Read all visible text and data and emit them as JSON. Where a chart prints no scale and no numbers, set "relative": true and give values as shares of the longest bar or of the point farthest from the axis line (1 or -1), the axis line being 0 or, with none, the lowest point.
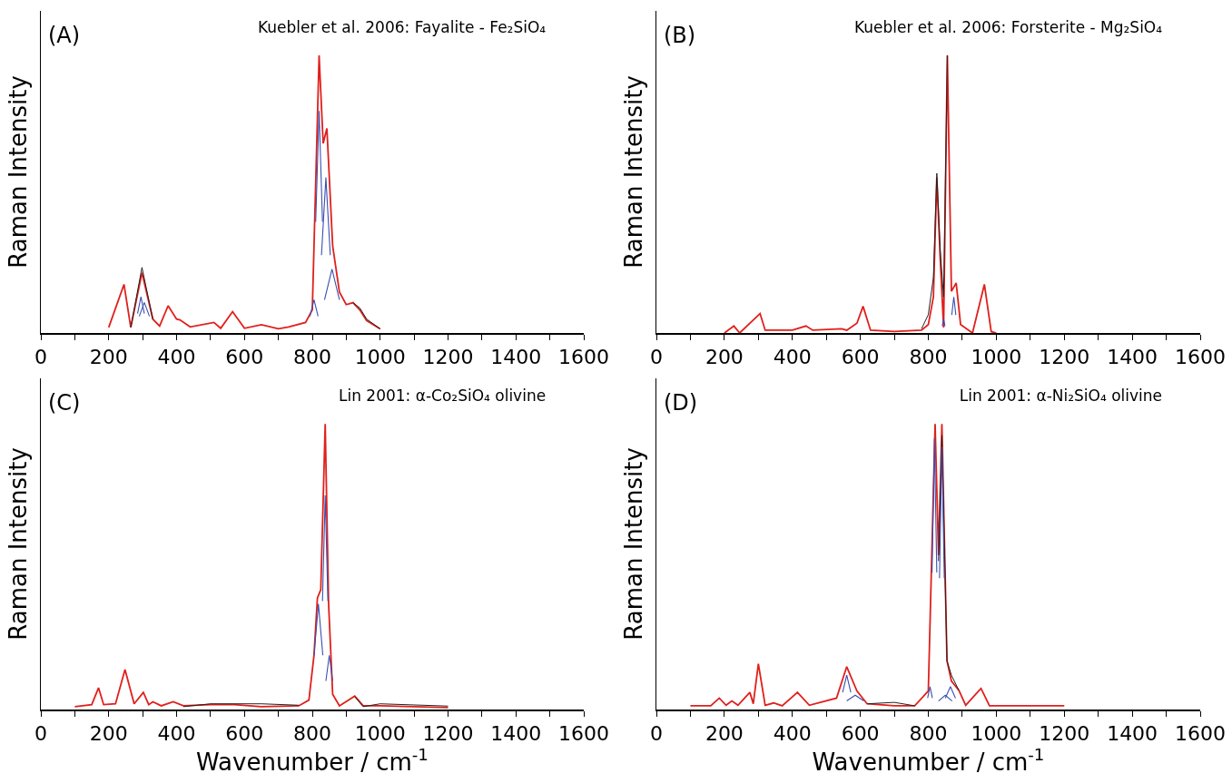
{
  "chart_data": [
    {
      "type": "line",
      "title": "Kuebler et al. 2006: Fayalite - Fe₂SiO₄",
      "ylabel": "Raman Intensity",
      "annotations": [
        "(A)"
      ],
      "relative": true,
      "xlim": [
        0,
        1600
      ],
      "xticks": [
        0,
        {
          "value": 100,
          "label": null
        },
        200,
        {
          "value": 300,
          "label": null
        },
        400,
        {
          "value": 500,
          "label": null
        },
        600,
        {
          "value": 700,
          "label": null
        },
        800,
        {
          "value": 900,
          "label": null
        },
        1000,
        {
          "value": 1100,
          "label": null
        },
        1200,
        {
          "value": 1300,
          "label": null
        },
        1400,
        {
          "value": 1500,
          "label": null
        },
        1600
      ],
      "x": [
        200,
        245,
        265,
        298,
        330,
        350,
        375,
        400,
        410,
        440,
        510,
        530,
        565,
        600,
        650,
        700,
        730,
        780,
        800,
        820,
        832,
        843,
        860,
        880,
        900,
        920,
        940,
        960,
        1000
      ],
      "series": [
        {
          "color": "#e0201c",
          "values": [
            0.02,
            0.175,
            0.02,
            0.217,
            0.05,
            0.025,
            0.098,
            0.05,
            0.047,
            0.022,
            0.038,
            0.017,
            0.077,
            0.017,
            0.03,
            0.015,
            0.022,
            0.038,
            0.083,
            1.0,
            0.683,
            0.737,
            0.313,
            0.147,
            0.102,
            0.109,
            0.083,
            0.045,
            0.015
          ]
        },
        {
          "color": "#222222",
          "values": [
            null,
            null,
            0.02,
            0.236,
            0.05,
            null,
            null,
            null,
            null,
            null,
            null,
            null,
            null,
            null,
            null,
            null,
            null,
            null,
            null,
            null,
            null,
            null,
            null,
            null,
            null,
            0.109,
            0.09,
            0.05,
            0.015
          ]
        },
        {
          "color": "#3a4fb0",
          "x": [
            285,
            295,
            305
          ],
          "values": [
            0.07,
            0.13,
            0.07
          ]
        },
        {
          "color": "#3a4fb0",
          "x": [
            290,
            305,
            320
          ],
          "values": [
            0.06,
            0.11,
            0.06
          ]
        },
        {
          "color": "#3a4fb0",
          "x": [
            793,
            805,
            817
          ],
          "values": [
            0.06,
            0.12,
            0.06
          ]
        },
        {
          "color": "#3a4fb0",
          "x": [
            810,
            820,
            830
          ],
          "values": [
            0.4,
            0.8,
            0.4
          ]
        },
        {
          "color": "#3a4fb0",
          "x": [
            827,
            840,
            853
          ],
          "values": [
            0.28,
            0.56,
            0.28
          ]
        },
        {
          "color": "#3a4fb0",
          "x": [
            836,
            858,
            880
          ],
          "values": [
            0.12,
            0.23,
            0.12
          ]
        }
      ]
    },
    {
      "type": "line",
      "title": "Kuebler et al. 2006: Forsterite - Mg₂SiO₄",
      "ylabel": "Raman Intensity",
      "annotations": [
        "(B)"
      ],
      "relative": true,
      "xlim": [
        0,
        1600
      ],
      "xticks": [
        0,
        {
          "value": 100,
          "label": null
        },
        200,
        {
          "value": 300,
          "label": null
        },
        400,
        {
          "value": 500,
          "label": null
        },
        600,
        {
          "value": 700,
          "label": null
        },
        800,
        {
          "value": 900,
          "label": null
        },
        1000,
        {
          "value": 1100,
          "label": null
        },
        1200,
        {
          "value": 1300,
          "label": null
        },
        1400,
        {
          "value": 1500,
          "label": null
        },
        1600
      ],
      "x": [
        200,
        228,
        245,
        305,
        320,
        340,
        400,
        440,
        460,
        545,
        560,
        590,
        608,
        630,
        700,
        780,
        800,
        815,
        825,
        835,
        845,
        856,
        868,
        882,
        895,
        930,
        965,
        985,
        1000
      ],
      "series": [
        {
          "color": "#e0201c",
          "values": [
            0.0,
            0.025,
            0.0,
            0.07,
            0.01,
            0.01,
            0.01,
            0.025,
            0.01,
            0.015,
            0.01,
            0.035,
            0.096,
            0.01,
            0.005,
            0.01,
            0.03,
            0.13,
            0.56,
            0.27,
            0.02,
            1.0,
            0.15,
            0.18,
            0.03,
            0.0,
            0.175,
            0.005,
            0.0
          ]
        },
        {
          "color": "#222222",
          "values": [
            null,
            null,
            null,
            null,
            null,
            null,
            null,
            null,
            null,
            null,
            null,
            null,
            null,
            null,
            null,
            0.015,
            0.066,
            0.2,
            0.575,
            0.3,
            0.13,
            1.0,
            null,
            null,
            null,
            null,
            null,
            null,
            null
          ]
        },
        {
          "color": "#3a4fb0",
          "x": [
            841,
            845,
            849
          ],
          "values": [
            0.025,
            0.05,
            0.025
          ]
        },
        {
          "color": "#3a4fb0",
          "x": [
            869,
            875,
            881
          ],
          "values": [
            0.065,
            0.13,
            0.065
          ]
        }
      ]
    },
    {
      "type": "line",
      "title": "Lin 2001: α-Co₂SiO₄ olivine",
      "xlabel": "Wavenumber / cm$^{-1}$",
      "ylabel": "Raman Intensity",
      "annotations": [
        "(C)"
      ],
      "relative": true,
      "xlim": [
        0,
        1600
      ],
      "xticks": [
        0,
        {
          "value": 100,
          "label": null
        },
        200,
        {
          "value": 300,
          "label": null
        },
        400,
        {
          "value": 500,
          "label": null
        },
        600,
        {
          "value": 700,
          "label": null
        },
        800,
        {
          "value": 900,
          "label": null
        },
        1000,
        {
          "value": 1100,
          "label": null
        },
        1200,
        {
          "value": 1300,
          "label": null
        },
        1400,
        {
          "value": 1500,
          "label": null
        },
        1600
      ],
      "x": [
        100,
        150,
        170,
        185,
        220,
        248,
        275,
        302,
        318,
        330,
        355,
        390,
        420,
        500,
        570,
        650,
        760,
        790,
        805,
        815,
        825,
        838,
        848,
        860,
        880,
        925,
        950,
        1000,
        1200
      ],
      "series": [
        {
          "color": "#e0201c",
          "values": [
            0.01,
            0.017,
            0.076,
            0.017,
            0.02,
            0.14,
            0.02,
            0.06,
            0.017,
            0.027,
            0.013,
            0.027,
            0.013,
            0.017,
            0.017,
            0.01,
            0.013,
            0.033,
            0.19,
            0.39,
            0.42,
            1.0,
            0.37,
            0.053,
            0.013,
            0.047,
            0.013,
            0.013,
            0.007
          ]
        },
        {
          "color": "#222222",
          "values": [
            null,
            null,
            null,
            null,
            null,
            null,
            null,
            null,
            null,
            null,
            null,
            null,
            0.01,
            0.02,
            0.02,
            0.02,
            0.015,
            null,
            null,
            null,
            null,
            null,
            null,
            null,
            null,
            0.045,
            0.01,
            0.02,
            0.012
          ]
        },
        {
          "color": "#3a4fb0",
          "x": [
            805,
            818,
            831
          ],
          "values": [
            0.19,
            0.37,
            0.19
          ]
        },
        {
          "color": "#3a4fb0",
          "x": [
            830,
            838,
            846
          ],
          "values": [
            0.38,
            0.75,
            0.38
          ]
        },
        {
          "color": "#3a4fb0",
          "x": [
            840,
            850,
            860
          ],
          "values": [
            0.1,
            0.19,
            0.1
          ]
        }
      ]
    },
    {
      "type": "line",
      "title": "Lin 2001: α-Ni₂SiO₄ olivine",
      "xlabel": "Wavenumber / cm$^{-1}$",
      "ylabel": "Raman Intensity",
      "annotations": [
        "(D)"
      ],
      "relative": true,
      "xlim": [
        0,
        1600
      ],
      "xticks": [
        0,
        {
          "value": 100,
          "label": null
        },
        200,
        {
          "value": 300,
          "label": null
        },
        400,
        {
          "value": 500,
          "label": null
        },
        600,
        {
          "value": 700,
          "label": null
        },
        800,
        {
          "value": 900,
          "label": null
        },
        1000,
        {
          "value": 1100,
          "label": null
        },
        1200,
        {
          "value": 1300,
          "label": null
        },
        1400,
        {
          "value": 1500,
          "label": null
        },
        1600
      ],
      "x": [
        100,
        160,
        185,
        205,
        222,
        240,
        275,
        285,
        300,
        320,
        345,
        370,
        415,
        450,
        530,
        560,
        590,
        620,
        700,
        760,
        800,
        820,
        830,
        840,
        855,
        868,
        890,
        910,
        955,
        980,
        1200
      ],
      "series": [
        {
          "color": "#e0201c",
          "values": [
            0.013,
            0.013,
            0.04,
            0.015,
            0.03,
            0.015,
            0.06,
            0.02,
            0.16,
            0.015,
            0.023,
            0.013,
            0.06,
            0.015,
            0.04,
            0.15,
            0.065,
            0.02,
            0.013,
            0.013,
            0.065,
            1.0,
            0.54,
            1.0,
            0.17,
            0.1,
            0.067,
            0.015,
            0.074,
            0.013,
            0.013
          ]
        },
        {
          "color": "#222222",
          "values": [
            null,
            null,
            null,
            null,
            null,
            null,
            null,
            null,
            null,
            null,
            null,
            null,
            null,
            null,
            null,
            null,
            null,
            0.02,
            0.025,
            0.013,
            null,
            null,
            0.52,
            0.96,
            0.17,
            0.12,
            0.067,
            null,
            null,
            null,
            null
          ]
        },
        {
          "color": "#3a4fb0",
          "x": [
            548,
            560,
            572
          ],
          "values": [
            0.06,
            0.12,
            0.06
          ]
        },
        {
          "color": "#3a4fb0",
          "x": [
            560,
            585,
            610
          ],
          "values": [
            0.03,
            0.05,
            0.03
          ]
        },
        {
          "color": "#3a4fb0",
          "x": [
            798,
            805,
            812
          ],
          "values": [
            0.04,
            0.08,
            0.04
          ]
        },
        {
          "color": "#3a4fb0",
          "x": [
            811,
            818,
            825
          ],
          "values": [
            0.48,
            0.95,
            0.48
          ]
        },
        {
          "color": "#3a4fb0",
          "x": [
            833,
            840,
            847
          ],
          "values": [
            0.46,
            0.92,
            0.46
          ]
        },
        {
          "color": "#3a4fb0",
          "x": [
            830,
            850,
            870
          ],
          "values": [
            0.03,
            0.05,
            0.03
          ]
        },
        {
          "color": "#3a4fb0",
          "x": [
            850,
            865,
            880
          ],
          "values": [
            0.04,
            0.08,
            0.04
          ]
        }
      ]
    }
  ]
}
